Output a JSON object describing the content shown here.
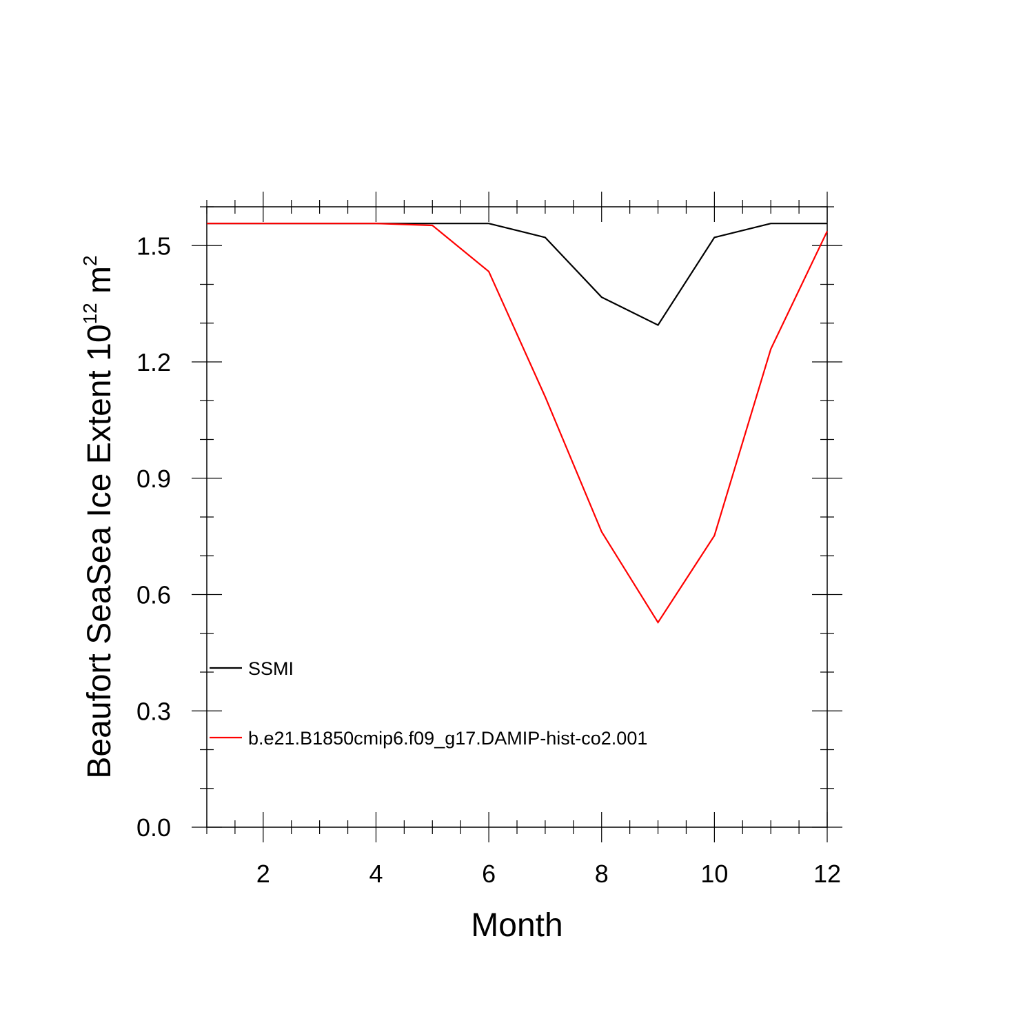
{
  "chart_data": {
    "type": "line",
    "xlabel": "Month",
    "ylabel": "Beaufort SeaSea Ice Extent 10",
    "ylabel_superscript": "12",
    "ylabel_unit": "m",
    "ylabel_unit_superscript": "2",
    "xlim": [
      1,
      12
    ],
    "ylim": [
      0.0,
      1.6
    ],
    "x_ticks": [
      2,
      4,
      6,
      8,
      10,
      12
    ],
    "x_tick_labels": [
      "2",
      "4",
      "6",
      "8",
      "10",
      "12"
    ],
    "y_ticks": [
      0.0,
      0.3,
      0.6,
      0.9,
      1.2,
      1.5
    ],
    "y_tick_labels": [
      "0.0",
      "0.3",
      "0.6",
      "0.9",
      "1.2",
      "1.5"
    ],
    "grid": false,
    "legend_position": "bottom-left",
    "x": [
      1,
      2,
      3,
      4,
      5,
      6,
      7,
      8,
      9,
      10,
      11,
      12
    ],
    "series": [
      {
        "name": "SSMI",
        "color": "#000000",
        "values": [
          1.557,
          1.557,
          1.557,
          1.557,
          1.557,
          1.557,
          1.521,
          1.367,
          1.295,
          1.521,
          1.557,
          1.557
        ]
      },
      {
        "name": "b.e21.B1850cmip6.f09_g17.DAMIP-hist-co2.001",
        "color": "#ff0000",
        "values": [
          1.557,
          1.557,
          1.557,
          1.557,
          1.552,
          1.433,
          1.11,
          0.762,
          0.528,
          0.752,
          1.233,
          1.537
        ]
      }
    ]
  }
}
